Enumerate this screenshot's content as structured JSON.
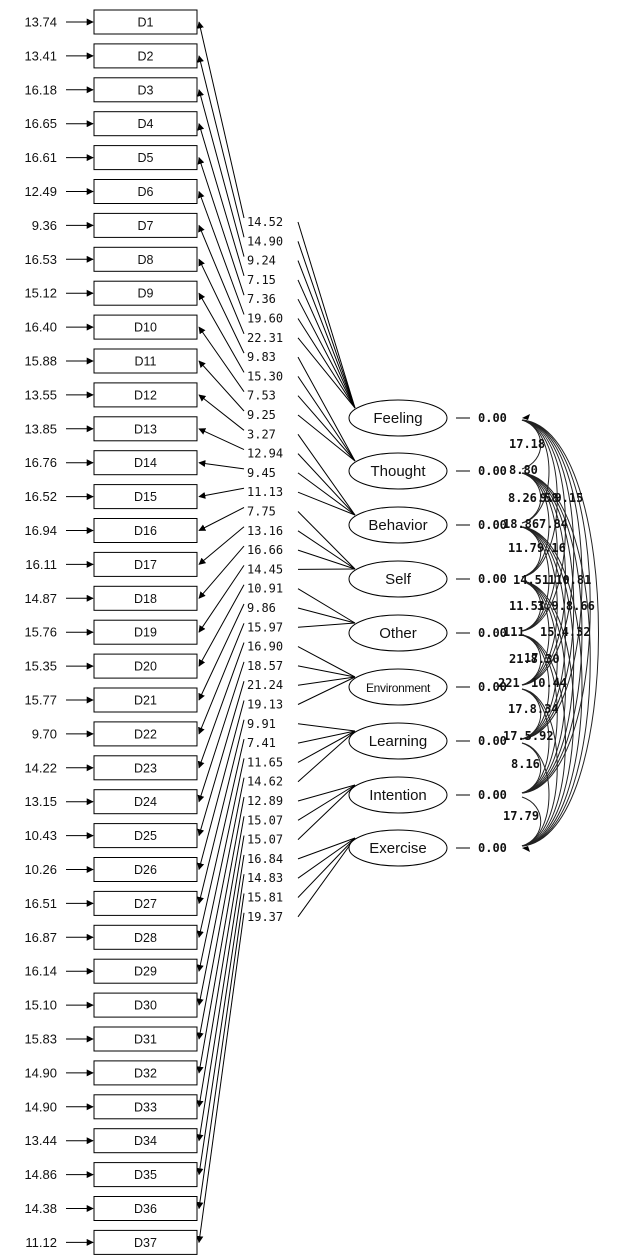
{
  "indicators": [
    {
      "label": "D1",
      "error": "13.74"
    },
    {
      "label": "D2",
      "error": "13.41"
    },
    {
      "label": "D3",
      "error": "16.18"
    },
    {
      "label": "D4",
      "error": "16.65"
    },
    {
      "label": "D5",
      "error": "16.61"
    },
    {
      "label": "D6",
      "error": "12.49"
    },
    {
      "label": "D7",
      "error": "9.36"
    },
    {
      "label": "D8",
      "error": "16.53"
    },
    {
      "label": "D9",
      "error": "15.12"
    },
    {
      "label": "D10",
      "error": "16.40"
    },
    {
      "label": "D11",
      "error": "15.88"
    },
    {
      "label": "D12",
      "error": "13.55"
    },
    {
      "label": "D13",
      "error": "13.85"
    },
    {
      "label": "D14",
      "error": "16.76"
    },
    {
      "label": "D15",
      "error": "16.52"
    },
    {
      "label": "D16",
      "error": "16.94"
    },
    {
      "label": "D17",
      "error": "16.11"
    },
    {
      "label": "D18",
      "error": "14.87"
    },
    {
      "label": "D19",
      "error": "15.76"
    },
    {
      "label": "D20",
      "error": "15.35"
    },
    {
      "label": "D21",
      "error": "15.77"
    },
    {
      "label": "D22",
      "error": "9.70"
    },
    {
      "label": "D23",
      "error": "14.22"
    },
    {
      "label": "D24",
      "error": "13.15"
    },
    {
      "label": "D25",
      "error": "10.43"
    },
    {
      "label": "D26",
      "error": "10.26"
    },
    {
      "label": "D27",
      "error": "16.51"
    },
    {
      "label": "D28",
      "error": "16.87"
    },
    {
      "label": "D29",
      "error": "16.14"
    },
    {
      "label": "D30",
      "error": "15.10"
    },
    {
      "label": "D31",
      "error": "15.83"
    },
    {
      "label": "D32",
      "error": "14.90"
    },
    {
      "label": "D33",
      "error": "14.90"
    },
    {
      "label": "D34",
      "error": "13.44"
    },
    {
      "label": "D35",
      "error": "14.86"
    },
    {
      "label": "D36",
      "error": "14.38"
    },
    {
      "label": "D37",
      "error": "11.12"
    }
  ],
  "loadings": [
    "14.52",
    "14.90",
    "9.24",
    "7.15",
    "7.36",
    "19.60",
    "22.31",
    "9.83",
    "15.30",
    "7.53",
    "9.25",
    "3.27",
    "12.94",
    "9.45",
    "11.13",
    "7.75",
    "13.16",
    "16.66",
    "14.45",
    "10.91",
    "9.86",
    "15.97",
    "16.90",
    "18.57",
    "21.24",
    "19.13",
    "9.91",
    "7.41",
    "11.65",
    "14.62",
    "12.89",
    "15.07",
    "15.07",
    "16.84",
    "14.83",
    "15.81",
    "19.37"
  ],
  "factors": [
    {
      "name": "Feeling",
      "variance": "0.00"
    },
    {
      "name": "Thought",
      "variance": "0.00"
    },
    {
      "name": "Behavior",
      "variance": "0.00"
    },
    {
      "name": "Self",
      "variance": "0.00"
    },
    {
      "name": "Other",
      "variance": "0.00"
    },
    {
      "name": "Environment",
      "variance": "0.00"
    },
    {
      "name": "Learning",
      "variance": "0.00"
    },
    {
      "name": "Intention",
      "variance": "0.00"
    },
    {
      "name": "Exercise",
      "variance": "0.00"
    }
  ],
  "covariance_labels": [
    "17.18",
    "8.80",
    "8.26.58",
    "9.9.15",
    "18.86",
    "7.84",
    "11.79.16",
    "14.51",
    "110.81",
    "11.51",
    "3.9.8.66",
    "111",
    "15.4.32",
    "17",
    "21.8.30",
    "221",
    "10.44",
    "17.8.34",
    "17.5.92",
    "8.16",
    "17.79"
  ]
}
